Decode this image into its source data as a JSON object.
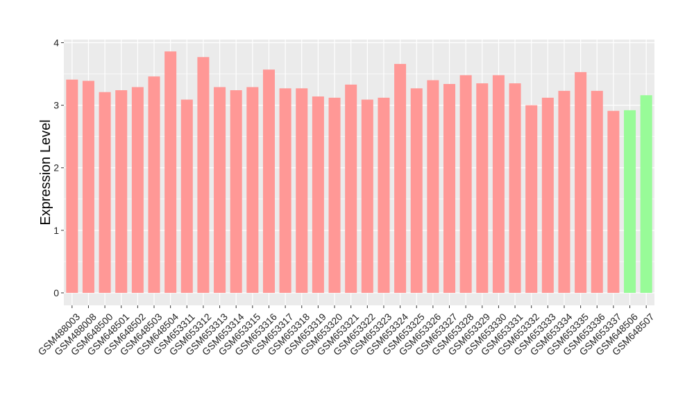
{
  "chart_data": {
    "type": "bar",
    "title": "",
    "xlabel": "",
    "ylabel": "Expression Level",
    "ylim": [
      -0.2,
      4.05
    ],
    "yticks": [
      0,
      1,
      2,
      3,
      4
    ],
    "grid": true,
    "legend": "none",
    "categories": [
      "GSM488003",
      "GSM488008",
      "GSM648500",
      "GSM648501",
      "GSM648502",
      "GSM648503",
      "GSM648504",
      "GSM653311",
      "GSM653312",
      "GSM653313",
      "GSM653314",
      "GSM653315",
      "GSM653316",
      "GSM653317",
      "GSM653318",
      "GSM653319",
      "GSM653320",
      "GSM653321",
      "GSM653322",
      "GSM653323",
      "GSM653324",
      "GSM653325",
      "GSM653326",
      "GSM653327",
      "GSM653328",
      "GSM653329",
      "GSM653330",
      "GSM653331",
      "GSM653332",
      "GSM653333",
      "GSM653334",
      "GSM653335",
      "GSM653336",
      "GSM653337",
      "GSM648506",
      "GSM648507"
    ],
    "values": [
      3.41,
      3.39,
      3.21,
      3.24,
      3.29,
      3.46,
      3.86,
      3.09,
      3.77,
      3.29,
      3.24,
      3.29,
      3.57,
      3.27,
      3.27,
      3.14,
      3.12,
      3.33,
      3.09,
      3.12,
      3.66,
      3.27,
      3.4,
      3.34,
      3.48,
      3.35,
      3.48,
      3.35,
      3.0,
      3.12,
      3.23,
      3.53,
      3.23,
      2.91,
      2.92,
      3.16
    ],
    "groups": [
      "a",
      "a",
      "a",
      "a",
      "a",
      "a",
      "a",
      "a",
      "a",
      "a",
      "a",
      "a",
      "a",
      "a",
      "a",
      "a",
      "a",
      "a",
      "a",
      "a",
      "a",
      "a",
      "a",
      "a",
      "a",
      "a",
      "a",
      "a",
      "a",
      "a",
      "a",
      "a",
      "a",
      "a",
      "b",
      "b"
    ],
    "colors": {
      "a": "#ff9896",
      "b": "#98fb98"
    },
    "panel_color": "#ebebeb",
    "grid_color": "#ffffff"
  }
}
